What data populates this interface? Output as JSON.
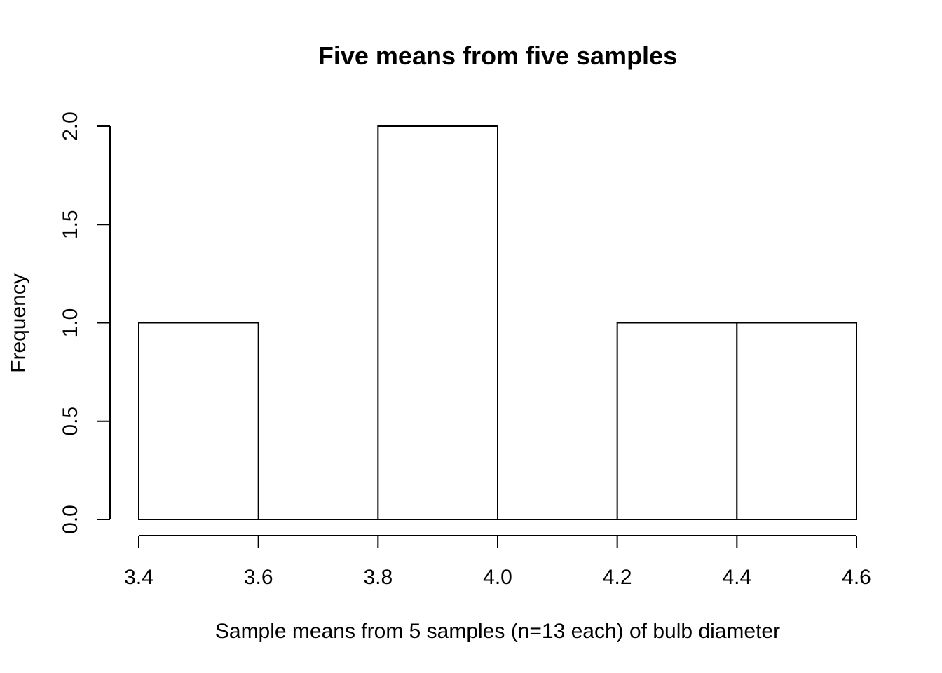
{
  "chart_data": {
    "type": "bar",
    "title": "Five means from five samples",
    "xlabel": "Sample means from 5 samples (n=13 each) of bulb diameter",
    "ylabel": "Frequency",
    "bins": [
      {
        "x0": 3.4,
        "x1": 3.6,
        "count": 1
      },
      {
        "x0": 3.6,
        "x1": 3.8,
        "count": 0
      },
      {
        "x0": 3.8,
        "x1": 4.0,
        "count": 2
      },
      {
        "x0": 4.0,
        "x1": 4.2,
        "count": 0
      },
      {
        "x0": 4.2,
        "x1": 4.4,
        "count": 1
      },
      {
        "x0": 4.4,
        "x1": 4.6,
        "count": 1
      }
    ],
    "xlim": [
      3.4,
      4.6
    ],
    "ylim": [
      0,
      2
    ],
    "xticks": [
      "3.4",
      "3.6",
      "3.8",
      "4.0",
      "4.2",
      "4.4",
      "4.6"
    ],
    "yticks": [
      "0.0",
      "0.5",
      "1.0",
      "1.5",
      "2.0"
    ],
    "grid": false
  }
}
